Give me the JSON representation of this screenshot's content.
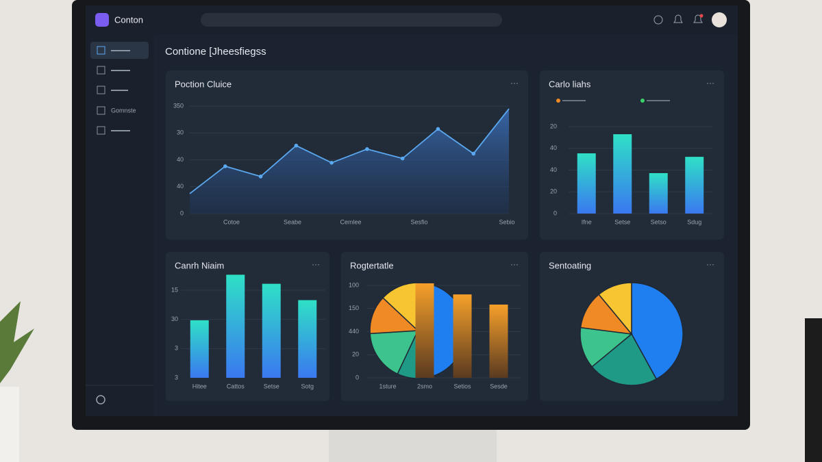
{
  "app": {
    "name": "Conton"
  },
  "sidebar": {
    "label": "Gomnste"
  },
  "page_title": "Contione [Jheesfiegss",
  "cards": [
    {
      "title": "Poction Cluice",
      "chart": {
        "type": "line",
        "color": "#5aa8f0",
        "ylabels": [
          "0",
          "40",
          "40",
          "30",
          "350"
        ],
        "categories": [
          "Cotoe",
          "Seabe",
          "Cemlee",
          "Sesfio",
          "Sebio"
        ],
        "values": [
          0.74,
          1.76,
          1.38,
          2.53,
          1.89,
          2.4,
          2.05,
          3.15,
          2.23,
          3.9
        ]
      }
    },
    {
      "title": "Carlo liahs",
      "chart": {
        "type": "bar",
        "legend_colors": [
          "#f08a24",
          "#3ad06a"
        ],
        "ylabels": [
          "0",
          "20",
          "40",
          "40",
          "20"
        ],
        "categories": [
          "Ifne",
          "Setse",
          "Setso",
          "Sdug"
        ],
        "values": [
          2.77,
          3.65,
          1.86,
          2.61
        ]
      }
    },
    {
      "title": "Canrh Niaim",
      "chart": {
        "type": "bar",
        "ylabels": [
          "3",
          "3",
          "30",
          "15"
        ],
        "categories": [
          "Hitee",
          "Cattos",
          "Setse",
          "Sotg"
        ],
        "values": [
          1.97,
          3.53,
          3.22,
          2.66
        ]
      }
    },
    {
      "title": "Rogtertatle",
      "chart": {
        "type": "combo",
        "ylabels": [
          "0",
          "20",
          "440",
          "150",
          "100"
        ],
        "categories": [
          "1sture",
          "2smo",
          "Setios",
          "Sesde"
        ],
        "values": [
          null,
          4.09,
          3.61,
          3.17
        ],
        "pie": {
          "values": [
            45,
            12,
            17,
            13,
            13
          ],
          "colors": [
            "#1f7ef0",
            "#1f9a86",
            "#3cc48c",
            "#f08a24",
            "#f6c531"
          ]
        }
      }
    },
    {
      "title": "Sentoating",
      "chart": {
        "type": "pie",
        "pie": {
          "values": [
            42,
            22,
            13,
            12,
            11
          ],
          "colors": [
            "#1f7ef0",
            "#1f9a86",
            "#3cc48c",
            "#f08a24",
            "#f6c531"
          ]
        }
      }
    }
  ]
}
